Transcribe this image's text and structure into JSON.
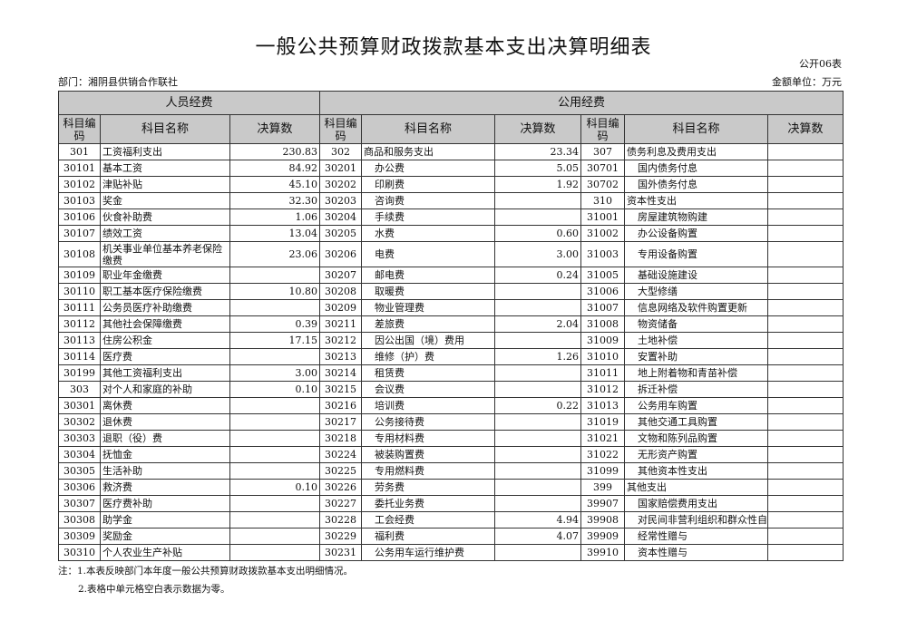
{
  "title": "一般公共预算财政拨款基本支出决算明细表",
  "form_no": "公开06表",
  "department": "部门：湘阴县供销合作联社",
  "unit": "金额单位：万元",
  "groups": {
    "personnel": "人员经费",
    "public": "公用经费"
  },
  "columns": {
    "code": "科目编码",
    "name": "科目名称",
    "amount": "决算数"
  },
  "rows": [
    [
      "301",
      "工资福利支出",
      "230.83",
      "302",
      "商品和服务支出",
      "23.34",
      "307",
      "债务利息及费用支出",
      ""
    ],
    [
      "30101",
      "基本工资",
      "84.92",
      "30201",
      "办公费",
      "5.05",
      "30701",
      "国内债务付息",
      ""
    ],
    [
      "30102",
      "津贴补贴",
      "45.10",
      "30202",
      "印刷费",
      "1.92",
      "30702",
      "国外债务付息",
      ""
    ],
    [
      "30103",
      "奖金",
      "32.30",
      "30203",
      "咨询费",
      "",
      "310",
      "资本性支出",
      ""
    ],
    [
      "30106",
      "伙食补助费",
      "1.06",
      "30204",
      "手续费",
      "",
      "31001",
      "房屋建筑物购建",
      ""
    ],
    [
      "30107",
      "绩效工资",
      "13.04",
      "30205",
      "水费",
      "0.60",
      "31002",
      "办公设备购置",
      ""
    ],
    [
      "30108",
      "机关事业单位基本养老保险缴费",
      "23.06",
      "30206",
      "电费",
      "3.00",
      "31003",
      "专用设备购置",
      ""
    ],
    [
      "30109",
      "职业年金缴费",
      "",
      "30207",
      "邮电费",
      "0.24",
      "31005",
      "基础设施建设",
      ""
    ],
    [
      "30110",
      "职工基本医疗保险缴费",
      "10.80",
      "30208",
      "取暖费",
      "",
      "31006",
      "大型修缮",
      ""
    ],
    [
      "30111",
      "公务员医疗补助缴费",
      "",
      "30209",
      "物业管理费",
      "",
      "31007",
      "信息网络及软件购置更新",
      ""
    ],
    [
      "30112",
      "其他社会保障缴费",
      "0.39",
      "30211",
      "差旅费",
      "2.04",
      "31008",
      "物资储备",
      ""
    ],
    [
      "30113",
      "住房公积金",
      "17.15",
      "30212",
      "因公出国（境）费用",
      "",
      "31009",
      "土地补偿",
      ""
    ],
    [
      "30114",
      "医疗费",
      "",
      "30213",
      "维修（护）费",
      "1.26",
      "31010",
      "安置补助",
      ""
    ],
    [
      "30199",
      "其他工资福利支出",
      "3.00",
      "30214",
      "租赁费",
      "",
      "31011",
      "地上附着物和青苗补偿",
      ""
    ],
    [
      "303",
      "对个人和家庭的补助",
      "0.10",
      "30215",
      "会议费",
      "",
      "31012",
      "拆迁补偿",
      ""
    ],
    [
      "30301",
      "离休费",
      "",
      "30216",
      "培训费",
      "0.22",
      "31013",
      "公务用车购置",
      ""
    ],
    [
      "30302",
      "退休费",
      "",
      "30217",
      "公务接待费",
      "",
      "31019",
      "其他交通工具购置",
      ""
    ],
    [
      "30303",
      "退职（役）费",
      "",
      "30218",
      "专用材料费",
      "",
      "31021",
      "文物和陈列品购置",
      ""
    ],
    [
      "30304",
      "抚恤金",
      "",
      "30224",
      "被装购置费",
      "",
      "31022",
      "无形资产购置",
      ""
    ],
    [
      "30305",
      "生活补助",
      "",
      "30225",
      "专用燃料费",
      "",
      "31099",
      "其他资本性支出",
      ""
    ],
    [
      "30306",
      "救济费",
      "0.10",
      "30226",
      "劳务费",
      "",
      "399",
      "其他支出",
      ""
    ],
    [
      "30307",
      "医疗费补助",
      "",
      "30227",
      "委托业务费",
      "",
      "39907",
      "国家赔偿费用支出",
      ""
    ],
    [
      "30308",
      "助学金",
      "",
      "30228",
      "工会经费",
      "4.94",
      "39908",
      "对民间非营利组织和群众性自",
      ""
    ],
    [
      "30309",
      "奖励金",
      "",
      "30229",
      "福利费",
      "4.07",
      "39909",
      "经常性赠与",
      ""
    ],
    [
      "30310",
      "个人农业生产补贴",
      "",
      "30231",
      "公务用车运行维护费",
      "",
      "39910",
      "资本性赠与",
      ""
    ]
  ],
  "notes": [
    "注：1.本表反映部门本年度一般公共预算财政拨款基本支出明细情况。",
    "2.表格中单元格空白表示数据为零。"
  ]
}
